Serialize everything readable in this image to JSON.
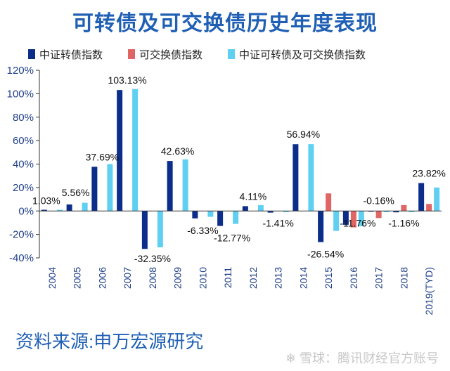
{
  "page": {
    "title": "可转债及可交换债历史年度表现",
    "source": "资料来源:申万宏源研究",
    "watermark": "❄ 雪球：腾讯财经官方账号"
  },
  "colors": {
    "series1": "#0c2e8a",
    "series2": "#e06666",
    "series3": "#5fd0f2",
    "axis": "#333333",
    "tick_text": "#1f3f8a"
  },
  "chart_data": {
    "type": "bar",
    "categories": [
      "2004",
      "2005",
      "2006",
      "2007",
      "2008",
      "2009",
      "2010",
      "2011",
      "2012",
      "2013",
      "2014",
      "2015",
      "2016",
      "2017",
      "2018",
      "2019(TYD)"
    ],
    "series": [
      {
        "name": "中证转债指数",
        "values": [
          1.03,
          5.56,
          37.69,
          103.13,
          -32.35,
          42.63,
          -6.33,
          -12.77,
          4.11,
          -1.41,
          56.94,
          -26.54,
          -11.76,
          -0.16,
          -1.16,
          23.82
        ]
      },
      {
        "name": "可交换债指数",
        "values": [
          0,
          0,
          0,
          0,
          0,
          0,
          0,
          0,
          0,
          0,
          0,
          15,
          -14,
          -6,
          5,
          6
        ]
      },
      {
        "name": "中证可转债及可交换债指数",
        "values": [
          1,
          7,
          40,
          104,
          -31,
          44,
          -5,
          -11,
          5,
          -1,
          57,
          -17,
          -13,
          -1,
          -1,
          20
        ]
      }
    ],
    "data_labels": [
      "1.03%",
      "5.56%",
      "37.69%",
      "103.13%",
      "-32.35%",
      "42.63%",
      "-6.33%",
      "-12.77%",
      "4.11%",
      "-1.41%",
      "56.94%",
      "-26.54%",
      "-11.76%",
      "-0.16%",
      "-1.16%",
      "23.82%"
    ],
    "yticks": [
      "-40%",
      "-20%",
      "0%",
      "20%",
      "40%",
      "60%",
      "80%",
      "100%",
      "120%"
    ],
    "ylim": [
      -40,
      120
    ],
    "legend_position": "top",
    "grid": false
  }
}
